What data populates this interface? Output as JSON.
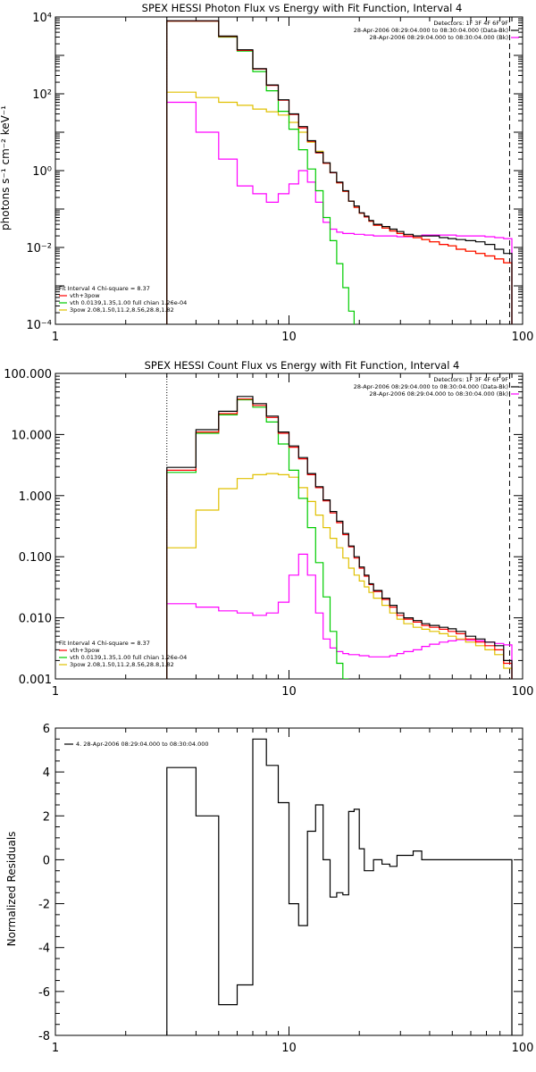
{
  "panels": [
    {
      "title": "SPEX HESSI Photon Flux vs Energy with Fit Function, Interval 4",
      "ylabel": "photons s⁻¹ cm⁻² keV⁻¹",
      "legend_tr": [
        {
          "text": "Detectors: 1F 3F 4F 6F 9F",
          "color": ""
        },
        {
          "text": "28-Apr-2006 08:29:04.000 to 08:30:04.000 (Data-Bk)",
          "color": "#000000"
        },
        {
          "text": "28-Apr-2006 08:29:04.000 to 08:30:04.000 (Bk)",
          "color": "#ff00ff"
        }
      ],
      "legend_bl": [
        {
          "text": "Fit Interval 4   Chi-square = 8.37",
          "color": ""
        },
        {
          "text": "vth+3pow",
          "color": "#ff0000"
        },
        {
          "text": "vth 0.0139,1.35,1.00  full chian 1.26e-04",
          "color": "#00cc00"
        },
        {
          "text": "3pow 2.08,1.50,11.2,8.56,28.8,1.82",
          "color": "#e0c000"
        }
      ],
      "xticks": [
        "1",
        "10",
        "100"
      ],
      "yticks": [
        "10⁴",
        "10²",
        "10⁰",
        "10⁻²",
        "10⁻⁴"
      ]
    },
    {
      "title": "SPEX HESSI Count Flux vs Energy with Fit Function, Interval 4",
      "ylabel": "",
      "legend_tr": [
        {
          "text": "Detectors: 1F 3F 4F 6F 9F",
          "color": ""
        },
        {
          "text": "28-Apr-2006 08:29:04.000 to 08:30:04.000 (Data-Bk)",
          "color": "#000000"
        },
        {
          "text": "28-Apr-2006 08:29:04.000 to 08:30:04.000 (Bk)",
          "color": "#ff00ff"
        }
      ],
      "legend_bl": [
        {
          "text": "Fit Interval 4   Chi-square = 8.37",
          "color": ""
        },
        {
          "text": "vth+3pow",
          "color": "#ff0000"
        },
        {
          "text": "vth 0.0139,1.35,1.00  full chian 1.26e-04",
          "color": "#00cc00"
        },
        {
          "text": "3pow 2.08,1.50,11.2,8.56,28.8,1.82",
          "color": "#e0c000"
        }
      ],
      "xticks": [
        "1",
        "10",
        "100"
      ],
      "yticks": [
        "100.000",
        "10.000",
        "1.000",
        "0.100",
        "0.010",
        "0.001"
      ]
    },
    {
      "title": "",
      "ylabel": "Normalized Residuals",
      "legend_tl": [
        {
          "text": "4. 28-Apr-2006 08:29:04.000 to 08:30:04.000",
          "color": "#000000"
        }
      ],
      "xticks": [
        "1",
        "10",
        "100"
      ],
      "yticks": [
        "6",
        "4",
        "2",
        "0",
        "-2",
        "-4",
        "-6",
        "-8"
      ]
    }
  ],
  "chart_data": [
    {
      "type": "line",
      "title": "SPEX HESSI Photon Flux vs Energy with Fit Function, Interval 4",
      "xlabel": "",
      "ylabel": "photons s⁻¹ cm⁻² keV⁻¹",
      "xscale": "log",
      "yscale": "log",
      "xlim": [
        1,
        100
      ],
      "ylim": [
        0.0001,
        10000
      ],
      "grid": false,
      "dotted_vline_x": 3,
      "dashed_vline_x": 88,
      "edges": [
        3,
        4,
        5,
        6,
        7,
        8,
        9,
        10,
        11,
        12,
        13,
        14,
        15,
        16,
        17,
        18,
        19,
        20,
        21,
        22,
        23,
        25,
        27,
        29,
        31,
        34,
        37,
        40,
        44,
        48,
        52,
        57,
        63,
        69,
        76,
        83,
        90
      ],
      "series": [
        {
          "name": "28-Apr-2006 08:29:04.000 to 08:30:04.000 (Data-Bk)",
          "color": "#000000",
          "values": [
            8000,
            8000,
            3200,
            1400,
            450,
            170,
            70,
            30,
            14,
            6,
            3,
            1.6,
            0.9,
            0.5,
            0.3,
            0.16,
            0.12,
            0.08,
            0.065,
            0.05,
            0.04,
            0.035,
            0.03,
            0.026,
            0.022,
            0.02,
            0.02,
            0.02,
            0.018,
            0.017,
            0.016,
            0.015,
            0.014,
            0.012,
            0.009,
            0.007
          ]
        },
        {
          "name": "vth+3pow",
          "color": "#ff0000",
          "values": [
            7800,
            7800,
            3100,
            1350,
            440,
            165,
            68,
            29,
            13,
            5.8,
            2.9,
            1.55,
            0.88,
            0.48,
            0.29,
            0.16,
            0.11,
            0.078,
            0.062,
            0.048,
            0.038,
            0.032,
            0.027,
            0.023,
            0.02,
            0.018,
            0.016,
            0.014,
            0.012,
            0.011,
            0.009,
            0.008,
            0.007,
            0.006,
            0.005,
            0.004
          ]
        },
        {
          "name": "vth 0.0139,1.35,1.00  full chian 1.26e-04",
          "color": "#00cc00",
          "values": [
            7800,
            7800,
            3000,
            1300,
            380,
            120,
            35,
            12,
            3.5,
            1.1,
            0.3,
            0.06,
            0.015,
            0.0038,
            0.0009,
            0.00022,
            null,
            null,
            null,
            null,
            null,
            null,
            null,
            null,
            null,
            null,
            null,
            null,
            null,
            null,
            null,
            null,
            null,
            null,
            null,
            null
          ]
        },
        {
          "name": "3pow 2.08,1.50,11.2,8.56,28.8,1.82",
          "color": "#e0c000",
          "values": [
            110,
            80,
            60,
            50,
            40,
            34,
            28,
            18,
            10,
            5.5,
            3.2,
            1.55,
            0.88,
            0.48,
            0.29,
            0.16,
            0.11,
            0.078,
            0.062,
            0.048,
            0.038,
            0.032,
            0.027,
            0.023,
            0.02,
            0.018,
            0.016,
            0.014,
            0.012,
            0.011,
            0.009,
            0.008,
            0.007,
            0.006,
            0.005,
            0.004
          ]
        },
        {
          "name": "28-Apr-2006 08:29:04.000 to 08:30:04.000 (Bk)",
          "color": "#ff00ff",
          "values": [
            60,
            10,
            2,
            0.4,
            0.25,
            0.15,
            0.25,
            0.45,
            1.0,
            0.5,
            0.15,
            0.045,
            0.03,
            0.025,
            0.023,
            0.023,
            0.022,
            0.022,
            0.021,
            0.021,
            0.02,
            0.02,
            0.02,
            0.019,
            0.019,
            0.02,
            0.021,
            0.021,
            0.021,
            0.021,
            0.02,
            0.02,
            0.02,
            0.019,
            0.018,
            0.017
          ]
        }
      ]
    },
    {
      "type": "line",
      "title": "SPEX HESSI Count Flux vs Energy with Fit Function, Interval 4",
      "xlabel": "",
      "ylabel": "",
      "xscale": "log",
      "yscale": "log",
      "xlim": [
        1,
        100
      ],
      "ylim": [
        0.001,
        100
      ],
      "grid": false,
      "dotted_vline_x": 3,
      "dashed_vline_x": 88,
      "edges": [
        3,
        4,
        5,
        6,
        7,
        8,
        9,
        10,
        11,
        12,
        13,
        14,
        15,
        16,
        17,
        18,
        19,
        20,
        21,
        22,
        23,
        25,
        27,
        29,
        31,
        34,
        37,
        40,
        44,
        48,
        52,
        57,
        63,
        69,
        76,
        83,
        90
      ],
      "series": [
        {
          "name": "28-Apr-2006 08:29:04.000 to 08:30:04.000 (Data-Bk)",
          "color": "#000000",
          "values": [
            2.9,
            12,
            24,
            42,
            32,
            20,
            11,
            6.5,
            4.2,
            2.3,
            1.4,
            0.85,
            0.55,
            0.38,
            0.24,
            0.15,
            0.1,
            0.068,
            0.05,
            0.036,
            0.028,
            0.021,
            0.016,
            0.012,
            0.01,
            0.009,
            0.008,
            0.0075,
            0.007,
            0.0066,
            0.006,
            0.005,
            0.0045,
            0.004,
            0.0035,
            0.002
          ]
        },
        {
          "name": "vth+3pow",
          "color": "#ff0000",
          "values": [
            2.6,
            11,
            22,
            38,
            30,
            19,
            10.5,
            6.2,
            4.0,
            2.2,
            1.35,
            0.82,
            0.52,
            0.36,
            0.23,
            0.145,
            0.095,
            0.065,
            0.048,
            0.035,
            0.027,
            0.02,
            0.015,
            0.011,
            0.0095,
            0.0085,
            0.0075,
            0.007,
            0.0065,
            0.006,
            0.0055,
            0.0045,
            0.004,
            0.0035,
            0.003,
            0.0018
          ]
        },
        {
          "name": "vth 0.0139,1.35,1.00  full chian 1.26e-04",
          "color": "#00cc00",
          "values": [
            2.4,
            10.5,
            21,
            37,
            28,
            16,
            7,
            2.6,
            0.9,
            0.3,
            0.08,
            0.022,
            0.006,
            0.0018,
            0.0009,
            null,
            null,
            null,
            null,
            null,
            null,
            null,
            null,
            null,
            null,
            null,
            null,
            null,
            null,
            null,
            null,
            null,
            null,
            null,
            null,
            null
          ]
        },
        {
          "name": "3pow 2.08,1.50,11.2,8.56,28.8,1.82",
          "color": "#e0c000",
          "values": [
            0.14,
            0.58,
            1.3,
            1.9,
            2.2,
            2.3,
            2.2,
            2.0,
            1.35,
            0.8,
            0.48,
            0.3,
            0.2,
            0.14,
            0.095,
            0.065,
            0.05,
            0.04,
            0.032,
            0.026,
            0.021,
            0.016,
            0.012,
            0.0095,
            0.008,
            0.007,
            0.0065,
            0.006,
            0.0055,
            0.005,
            0.0045,
            0.004,
            0.0035,
            0.003,
            0.0025,
            0.0015
          ]
        },
        {
          "name": "28-Apr-2006 08:29:04.000 to 08:30:04.000 (Bk)",
          "color": "#ff00ff",
          "values": [
            0.017,
            0.015,
            0.013,
            0.012,
            0.011,
            0.012,
            0.018,
            0.05,
            0.11,
            0.05,
            0.012,
            0.0045,
            0.0032,
            0.0028,
            0.0026,
            0.0025,
            0.0025,
            0.0024,
            0.0024,
            0.0023,
            0.0023,
            0.0023,
            0.0024,
            0.0026,
            0.0028,
            0.003,
            0.0034,
            0.0037,
            0.004,
            0.0042,
            0.0044,
            0.0043,
            0.0042,
            0.004,
            0.0038,
            0.0036
          ]
        }
      ]
    },
    {
      "type": "line",
      "title": "",
      "xlabel": "",
      "ylabel": "Normalized Residuals",
      "xscale": "log",
      "yscale": "linear",
      "xlim": [
        1,
        100
      ],
      "ylim": [
        -8,
        6
      ],
      "grid": false,
      "edges": [
        3,
        4,
        5,
        6,
        7,
        8,
        9,
        10,
        11,
        12,
        13,
        14,
        15,
        16,
        17,
        18,
        19,
        20,
        21,
        22,
        23,
        25,
        27,
        29,
        31,
        34,
        37,
        40,
        44,
        48,
        52,
        57,
        63,
        69,
        76,
        83,
        90
      ],
      "series": [
        {
          "name": "4. 28-Apr-2006 08:29:04.000 to 08:30:04.000",
          "color": "#000000",
          "values": [
            4.2,
            2.0,
            -6.6,
            -5.7,
            5.5,
            4.3,
            2.6,
            -2.0,
            -3.0,
            1.3,
            2.5,
            0.0,
            -1.7,
            -1.5,
            -1.6,
            2.2,
            2.3,
            0.5,
            -0.5,
            -0.5,
            0.0,
            -0.2,
            -0.3,
            0.2,
            0.2,
            0.4,
            0.0,
            0.0,
            0.0,
            0.0,
            0.0,
            0.0,
            0.0,
            0.0,
            0.0,
            0.0
          ]
        }
      ]
    }
  ]
}
